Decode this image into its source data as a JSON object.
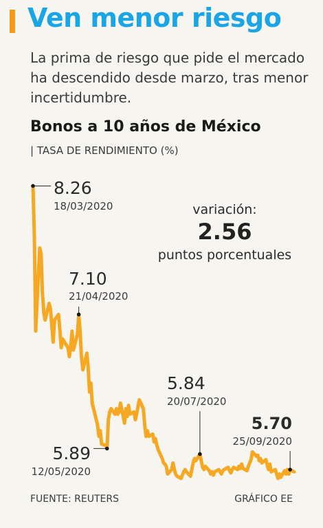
{
  "headline": "Ven menor riesgo",
  "subtitle": "La prima de riesgo que pide el mercado ha descendido desde marzo, tras menor incertidumbre.",
  "source": "FUENTE: REUTERS",
  "credit": "GRÁFICO EE",
  "variation": {
    "label": "variación:",
    "value": "2.56",
    "unit": "puntos porcentuales"
  },
  "colors": {
    "accent": "#f39a1e",
    "headline": "#1aa6e6",
    "line": "#f7a823"
  },
  "chart_data": {
    "type": "line",
    "title": "Bonos a 10 años de México",
    "ylabel": "| TASA DE RENDIMIENTO (%)",
    "xlabel": "",
    "x_range": [
      "2020-03-18",
      "2020-09-28"
    ],
    "ylim": [
      5.57,
      8.3
    ],
    "grid": false,
    "series": [
      {
        "values": [
          [
            "2020-03-18",
            8.26
          ],
          [
            "2020-03-19",
            7.8
          ],
          [
            "2020-03-20",
            6.95
          ],
          [
            "2020-03-23",
            7.7
          ],
          [
            "2020-03-24",
            7.65
          ],
          [
            "2020-03-25",
            7.3
          ],
          [
            "2020-03-26",
            7.12
          ],
          [
            "2020-03-27",
            7.05
          ],
          [
            "2020-03-30",
            7.2
          ],
          [
            "2020-03-31",
            7.15
          ],
          [
            "2020-04-01",
            7.0
          ],
          [
            "2020-04-02",
            6.85
          ],
          [
            "2020-04-03",
            7.05
          ],
          [
            "2020-04-06",
            7.1
          ],
          [
            "2020-04-07",
            6.95
          ],
          [
            "2020-04-08",
            6.8
          ],
          [
            "2020-04-09",
            6.88
          ],
          [
            "2020-04-13",
            6.8
          ],
          [
            "2020-04-14",
            6.72
          ],
          [
            "2020-04-15",
            6.8
          ],
          [
            "2020-04-16",
            6.95
          ],
          [
            "2020-04-17",
            6.78
          ],
          [
            "2020-04-20",
            6.92
          ],
          [
            "2020-04-21",
            7.1
          ],
          [
            "2020-04-22",
            6.95
          ],
          [
            "2020-04-23",
            6.72
          ],
          [
            "2020-04-24",
            6.6
          ],
          [
            "2020-04-27",
            6.75
          ],
          [
            "2020-04-28",
            6.62
          ],
          [
            "2020-04-29",
            6.4
          ],
          [
            "2020-04-30",
            6.48
          ],
          [
            "2020-05-01",
            6.3
          ],
          [
            "2020-05-04",
            6.15
          ],
          [
            "2020-05-05",
            6.1
          ],
          [
            "2020-05-06",
            6.0
          ],
          [
            "2020-05-07",
            6.05
          ],
          [
            "2020-05-08",
            5.93
          ],
          [
            "2020-05-11",
            5.92
          ],
          [
            "2020-05-12",
            5.89
          ],
          [
            "2020-05-13",
            6.15
          ],
          [
            "2020-05-14",
            6.22
          ],
          [
            "2020-05-15",
            6.25
          ],
          [
            "2020-05-18",
            6.2
          ],
          [
            "2020-05-19",
            6.25
          ],
          [
            "2020-05-20",
            6.2
          ],
          [
            "2020-05-21",
            6.22
          ],
          [
            "2020-05-22",
            6.3
          ],
          [
            "2020-05-25",
            6.12
          ],
          [
            "2020-05-26",
            6.25
          ],
          [
            "2020-05-27",
            6.18
          ],
          [
            "2020-05-28",
            6.28
          ],
          [
            "2020-05-29",
            6.2
          ],
          [
            "2020-06-01",
            6.22
          ],
          [
            "2020-06-02",
            6.15
          ],
          [
            "2020-06-03",
            6.2
          ],
          [
            "2020-06-04",
            6.27
          ],
          [
            "2020-06-05",
            6.33
          ],
          [
            "2020-06-08",
            6.25
          ],
          [
            "2020-06-09",
            6.1
          ],
          [
            "2020-06-10",
            6.0
          ],
          [
            "2020-06-11",
            6.05
          ],
          [
            "2020-06-12",
            6.0
          ],
          [
            "2020-06-15",
            6.02
          ],
          [
            "2020-06-16",
            5.95
          ],
          [
            "2020-06-17",
            5.98
          ],
          [
            "2020-06-18",
            5.92
          ],
          [
            "2020-06-19",
            5.88
          ],
          [
            "2020-06-22",
            5.8
          ],
          [
            "2020-06-23",
            5.76
          ],
          [
            "2020-06-24",
            5.75
          ],
          [
            "2020-06-25",
            5.73
          ],
          [
            "2020-06-26",
            5.66
          ],
          [
            "2020-06-29",
            5.7
          ],
          [
            "2020-06-30",
            5.76
          ],
          [
            "2020-07-01",
            5.7
          ],
          [
            "2020-07-02",
            5.66
          ],
          [
            "2020-07-03",
            5.64
          ],
          [
            "2020-07-06",
            5.62
          ],
          [
            "2020-07-07",
            5.65
          ],
          [
            "2020-07-08",
            5.68
          ],
          [
            "2020-07-09",
            5.7
          ],
          [
            "2020-07-10",
            5.68
          ],
          [
            "2020-07-13",
            5.64
          ],
          [
            "2020-07-14",
            5.7
          ],
          [
            "2020-07-15",
            5.76
          ],
          [
            "2020-07-16",
            5.8
          ],
          [
            "2020-07-17",
            5.78
          ],
          [
            "2020-07-20",
            5.84
          ],
          [
            "2020-07-21",
            5.78
          ],
          [
            "2020-07-22",
            5.72
          ],
          [
            "2020-07-23",
            5.7
          ],
          [
            "2020-07-24",
            5.73
          ],
          [
            "2020-07-27",
            5.69
          ],
          [
            "2020-07-28",
            5.66
          ],
          [
            "2020-07-29",
            5.68
          ],
          [
            "2020-07-30",
            5.65
          ],
          [
            "2020-07-31",
            5.68
          ],
          [
            "2020-08-03",
            5.7
          ],
          [
            "2020-08-04",
            5.68
          ],
          [
            "2020-08-05",
            5.66
          ],
          [
            "2020-08-06",
            5.69
          ],
          [
            "2020-08-07",
            5.7
          ],
          [
            "2020-08-10",
            5.72
          ],
          [
            "2020-08-11",
            5.69
          ],
          [
            "2020-08-12",
            5.67
          ],
          [
            "2020-08-13",
            5.7
          ],
          [
            "2020-08-14",
            5.72
          ],
          [
            "2020-08-17",
            5.7
          ],
          [
            "2020-08-18",
            5.73
          ],
          [
            "2020-08-19",
            5.71
          ],
          [
            "2020-08-20",
            5.75
          ],
          [
            "2020-08-21",
            5.71
          ],
          [
            "2020-08-24",
            5.69
          ],
          [
            "2020-08-25",
            5.73
          ],
          [
            "2020-08-26",
            5.76
          ],
          [
            "2020-08-27",
            5.79
          ],
          [
            "2020-08-28",
            5.86
          ],
          [
            "2020-08-31",
            5.82
          ],
          [
            "2020-09-01",
            5.83
          ],
          [
            "2020-09-02",
            5.78
          ],
          [
            "2020-09-03",
            5.8
          ],
          [
            "2020-09-04",
            5.76
          ],
          [
            "2020-09-07",
            5.79
          ],
          [
            "2020-09-08",
            5.74
          ],
          [
            "2020-09-09",
            5.7
          ],
          [
            "2020-09-10",
            5.75
          ],
          [
            "2020-09-11",
            5.68
          ],
          [
            "2020-09-14",
            5.7
          ],
          [
            "2020-09-15",
            5.66
          ],
          [
            "2020-09-16",
            5.62
          ],
          [
            "2020-09-17",
            5.66
          ],
          [
            "2020-09-18",
            5.63
          ],
          [
            "2020-09-21",
            5.69
          ],
          [
            "2020-09-22",
            5.66
          ],
          [
            "2020-09-23",
            5.7
          ],
          [
            "2020-09-24",
            5.66
          ],
          [
            "2020-09-25",
            5.7
          ],
          [
            "2020-09-28",
            5.68
          ]
        ]
      }
    ],
    "annotations": [
      {
        "date": "2020-03-18",
        "value": 8.26,
        "value_text": "8.26",
        "date_text": "18/03/2020",
        "bold": false
      },
      {
        "date": "2020-04-21",
        "value": 7.1,
        "value_text": "7.10",
        "date_text": "21/04/2020",
        "bold": false
      },
      {
        "date": "2020-05-12",
        "value": 5.89,
        "value_text": "5.89",
        "date_text": "12/05/2020",
        "bold": false
      },
      {
        "date": "2020-07-20",
        "value": 5.84,
        "value_text": "5.84",
        "date_text": "20/07/2020",
        "bold": false
      },
      {
        "date": "2020-09-25",
        "value": 5.7,
        "value_text": "5.70",
        "date_text": "25/09/2020",
        "bold": true
      }
    ]
  }
}
